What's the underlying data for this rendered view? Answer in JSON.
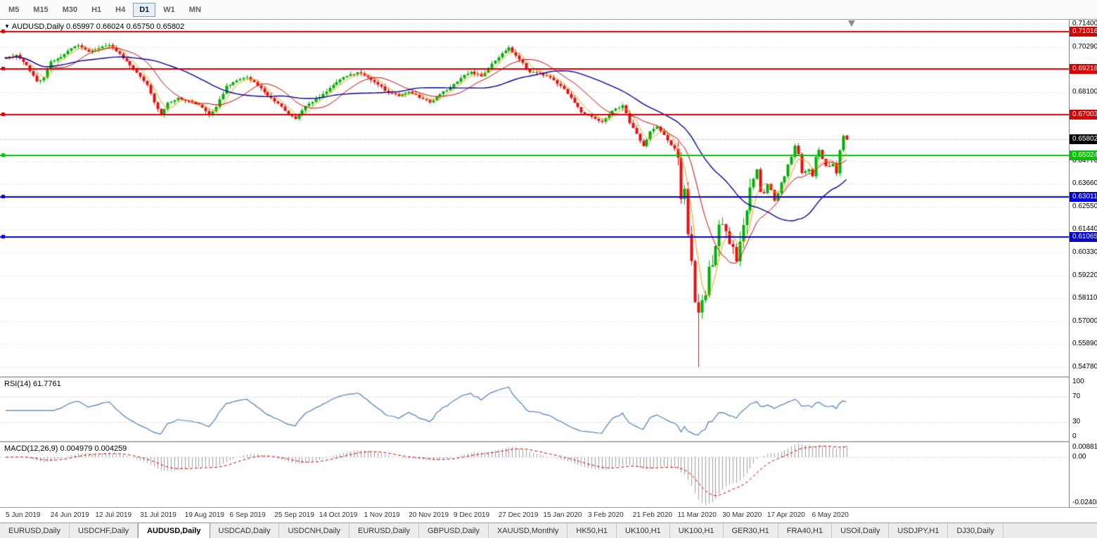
{
  "toolbar": {
    "timeframes": [
      {
        "label": "M5",
        "active": false
      },
      {
        "label": "M15",
        "active": false
      },
      {
        "label": "M30",
        "active": false
      },
      {
        "label": "H1",
        "active": false
      },
      {
        "label": "H4",
        "active": false
      },
      {
        "label": "D1",
        "active": true
      },
      {
        "label": "W1",
        "active": false
      },
      {
        "label": "MN",
        "active": false
      }
    ]
  },
  "chart": {
    "symbol": "AUDUSD,Daily",
    "ohlc_text": "0.65997 0.66024 0.65750 0.65802",
    "price_axis": {
      "pmax": 0.71604,
      "pmin": 0.54337,
      "labels": [
        "0.71400",
        "0.70290",
        "0.68100",
        "0.64770",
        "0.63660",
        "0.62550",
        "0.61440",
        "0.60330",
        "0.59220",
        "0.58110",
        "0.57000",
        "0.55890",
        "0.54780"
      ]
    },
    "levels": [
      {
        "price": 0.71016,
        "label": "0.71016",
        "color": "#d60000"
      },
      {
        "price": 0.69218,
        "label": "0.69218",
        "color": "#d60000"
      },
      {
        "price": 0.67003,
        "label": "0.67003",
        "color": "#d60000"
      },
      {
        "price": 0.65024,
        "label": "0.65024",
        "color": "#00c400"
      },
      {
        "price": 0.63011,
        "label": "0.63011",
        "color": "#0000d6"
      },
      {
        "price": 0.61065,
        "label": "0.61065",
        "color": "#0000d6"
      }
    ],
    "bid": {
      "price": 0.65802,
      "label": "0.65802",
      "tag_bg": "#000000"
    },
    "dates": [
      "5 Jun 2019",
      "24 Jun 2019",
      "12 Jul 2019",
      "31 Jul 2019",
      "19 Aug 2019",
      "6 Sep 2019",
      "25 Sep 2019",
      "14 Oct 2019",
      "1 Nov 2019",
      "20 Nov 2019",
      "9 Dec 2019",
      "27 Dec 2019",
      "15 Jan 2020",
      "3 Feb 2020",
      "21 Feb 2020",
      "11 Mar 2020",
      "30 Mar 2020",
      "17 Apr 2020",
      "6 May 2020"
    ],
    "bars": 245,
    "bars_per_label": 13,
    "keyframes": [
      [
        0,
        0.6972
      ],
      [
        3,
        0.699
      ],
      [
        6,
        0.694
      ],
      [
        9,
        0.6862
      ],
      [
        11,
        0.688
      ],
      [
        13,
        0.6958
      ],
      [
        16,
        0.698
      ],
      [
        19,
        0.7022
      ],
      [
        21,
        0.7036
      ],
      [
        24,
        0.7005
      ],
      [
        27,
        0.7022
      ],
      [
        30,
        0.7038
      ],
      [
        33,
        0.6995
      ],
      [
        36,
        0.694
      ],
      [
        39,
        0.6885
      ],
      [
        41,
        0.6845
      ],
      [
        43,
        0.676
      ],
      [
        45,
        0.67
      ],
      [
        47,
        0.6758
      ],
      [
        50,
        0.6782
      ],
      [
        53,
        0.6768
      ],
      [
        56,
        0.6748
      ],
      [
        59,
        0.67
      ],
      [
        61,
        0.6738
      ],
      [
        64,
        0.684
      ],
      [
        67,
        0.6866
      ],
      [
        70,
        0.6882
      ],
      [
        73,
        0.6842
      ],
      [
        76,
        0.6792
      ],
      [
        79,
        0.6755
      ],
      [
        82,
        0.6702
      ],
      [
        84,
        0.668
      ],
      [
        87,
        0.6742
      ],
      [
        90,
        0.6778
      ],
      [
        93,
        0.6812
      ],
      [
        96,
        0.6858
      ],
      [
        99,
        0.6888
      ],
      [
        102,
        0.6906
      ],
      [
        105,
        0.6882
      ],
      [
        108,
        0.6846
      ],
      [
        111,
        0.6806
      ],
      [
        114,
        0.679
      ],
      [
        117,
        0.6812
      ],
      [
        120,
        0.6782
      ],
      [
        123,
        0.676
      ],
      [
        126,
        0.68
      ],
      [
        129,
        0.6834
      ],
      [
        132,
        0.6878
      ],
      [
        135,
        0.6908
      ],
      [
        138,
        0.6886
      ],
      [
        141,
        0.6948
      ],
      [
        144,
        0.6998
      ],
      [
        146,
        0.7026
      ],
      [
        149,
        0.6968
      ],
      [
        152,
        0.6906
      ],
      [
        155,
        0.6902
      ],
      [
        158,
        0.688
      ],
      [
        161,
        0.684
      ],
      [
        164,
        0.6782
      ],
      [
        167,
        0.6712
      ],
      [
        170,
        0.669
      ],
      [
        173,
        0.6666
      ],
      [
        176,
        0.672
      ],
      [
        179,
        0.6746
      ],
      [
        181,
        0.666
      ],
      [
        183,
        0.6608
      ],
      [
        185,
        0.6548
      ],
      [
        187,
        0.662
      ],
      [
        189,
        0.6642
      ],
      [
        191,
        0.6602
      ],
      [
        193,
        0.6552
      ],
      [
        195,
        0.6492
      ],
      [
        196,
        0.6292
      ],
      [
        197,
        0.6342
      ],
      [
        198,
        0.6122
      ],
      [
        199,
        0.5992
      ],
      [
        200,
        0.5792
      ],
      [
        201,
        0.5742
      ],
      [
        202,
        0.5802
      ],
      [
        203,
        0.5826
      ],
      [
        204,
        0.5964
      ],
      [
        205,
        0.5972
      ],
      [
        206,
        0.6064
      ],
      [
        207,
        0.6168
      ],
      [
        208,
        0.617
      ],
      [
        209,
        0.6136
      ],
      [
        210,
        0.6074
      ],
      [
        211,
        0.606
      ],
      [
        212,
        0.599
      ],
      [
        213,
        0.6086
      ],
      [
        214,
        0.6166
      ],
      [
        215,
        0.6236
      ],
      [
        216,
        0.6348
      ],
      [
        217,
        0.639
      ],
      [
        218,
        0.6436
      ],
      [
        219,
        0.6326
      ],
      [
        220,
        0.632
      ],
      [
        221,
        0.6364
      ],
      [
        222,
        0.6336
      ],
      [
        223,
        0.6284
      ],
      [
        224,
        0.632
      ],
      [
        225,
        0.6372
      ],
      [
        226,
        0.6402
      ],
      [
        227,
        0.646
      ],
      [
        228,
        0.6496
      ],
      [
        229,
        0.655
      ],
      [
        230,
        0.651
      ],
      [
        231,
        0.6418
      ],
      [
        232,
        0.6426
      ],
      [
        233,
        0.6436
      ],
      [
        234,
        0.6402
      ],
      [
        235,
        0.6496
      ],
      [
        236,
        0.653
      ],
      [
        237,
        0.6486
      ],
      [
        238,
        0.6452
      ],
      [
        239,
        0.645
      ],
      [
        240,
        0.6462
      ],
      [
        241,
        0.6416
      ],
      [
        242,
        0.6528
      ],
      [
        243,
        0.6598
      ],
      [
        244,
        0.65802
      ]
    ],
    "overrides": {
      "201": {
        "low": 0.5478
      },
      "244": {
        "open": 0.65997,
        "high": 0.66024,
        "low": 0.6575,
        "close": 0.65802
      }
    },
    "ma": [
      {
        "period": 5,
        "color": "#ff9900",
        "width": 1
      },
      {
        "period": 13,
        "color": "#d40000",
        "width": 1
      },
      {
        "period": 34,
        "color": "#0000a8",
        "width": 1.4
      }
    ],
    "colors": {
      "bull": "#00b200",
      "bear": "#ea0f0f",
      "grid": "#d9d9d9",
      "bid_line": "#bdbdbd"
    }
  },
  "rsi": {
    "label": "RSI(14)",
    "value": "61.7761",
    "period": 14,
    "levels": [
      70,
      30
    ],
    "axis": [
      "100",
      "70",
      "30",
      "0"
    ],
    "color": "#4a7ebb"
  },
  "macd": {
    "label": "MACD(12,26,9)",
    "values": "0.004979 0.004259",
    "fast": 12,
    "slow": 26,
    "signal": 9,
    "axis_top": "0.008815",
    "axis_zero": "0.00",
    "axis_bottom": "-0.02408",
    "hist_color": "#9e9e9e",
    "signal_color": "#d40000"
  },
  "tabs": {
    "items": [
      {
        "label": "EURUSD,Daily",
        "active": false
      },
      {
        "label": "USDCHF,Daily",
        "active": false
      },
      {
        "label": "AUDUSD,Daily",
        "active": true
      },
      {
        "label": "USDCAD,Daily",
        "active": false
      },
      {
        "label": "USDCNH,Daily",
        "active": false
      },
      {
        "label": "EURUSD,Daily",
        "active": false
      },
      {
        "label": "GBPUSD,Daily",
        "active": false
      },
      {
        "label": "XAUUSD,Monthly",
        "active": false
      },
      {
        "label": "HK50,H1",
        "active": false
      },
      {
        "label": "UK100,H1",
        "active": false
      },
      {
        "label": "UK100,H1",
        "active": false
      },
      {
        "label": "GER30,H1",
        "active": false
      },
      {
        "label": "FRA40,H1",
        "active": false
      },
      {
        "label": "USOil,Daily",
        "active": false
      },
      {
        "label": "USDJPY,H1",
        "active": false
      },
      {
        "label": "DJ30,Daily",
        "active": false
      }
    ]
  }
}
